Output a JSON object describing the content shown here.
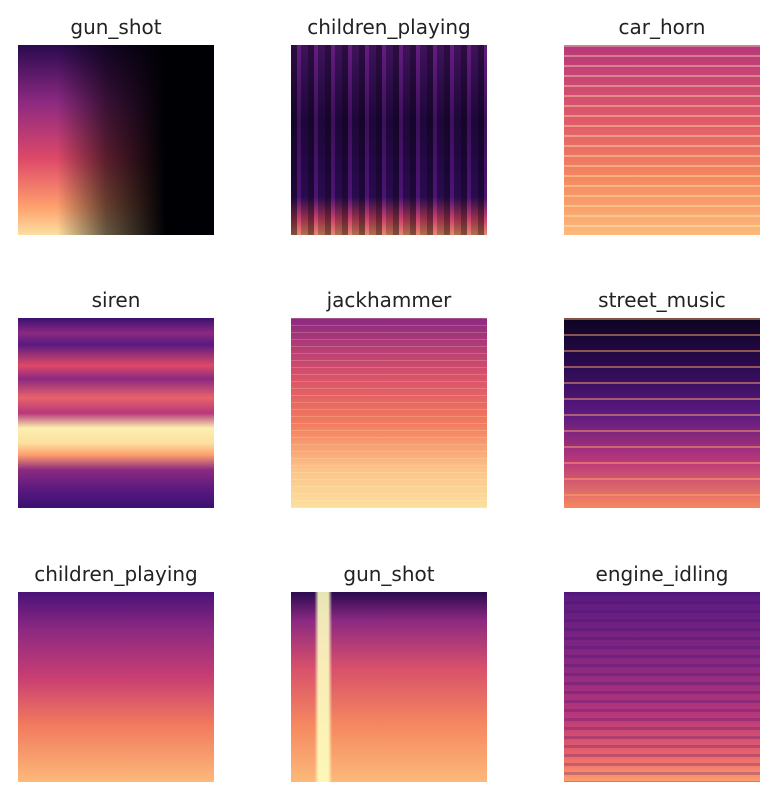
{
  "panels": [
    {
      "label": "gun_shot"
    },
    {
      "label": "children_playing"
    },
    {
      "label": "car_horn"
    },
    {
      "label": "siren"
    },
    {
      "label": "jackhammer"
    },
    {
      "label": "street_music"
    },
    {
      "label": "children_playing"
    },
    {
      "label": "gun_shot"
    },
    {
      "label": "engine_idling"
    }
  ],
  "colormap": [
    "#000004",
    "#3b0f70",
    "#8c2981",
    "#de4968",
    "#fe9f6d",
    "#fcfdbf"
  ]
}
